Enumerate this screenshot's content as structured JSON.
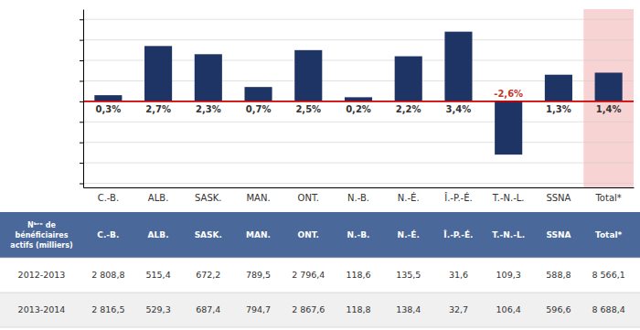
{
  "chart_data": {
    "type": "bar",
    "categories": [
      "C.-B.",
      "ALB.",
      "SASK.",
      "MAN.",
      "ONT.",
      "N.-B.",
      "N.-É.",
      "Î.-P.-É.",
      "T.-N.-L.",
      "SSNA",
      "Total*"
    ],
    "values": [
      0.3,
      2.7,
      2.3,
      0.7,
      2.5,
      0.2,
      2.2,
      3.4,
      -2.6,
      1.3,
      1.4
    ],
    "value_labels": [
      "0,3%",
      "2,7%",
      "2,3%",
      "0,7%",
      "2,5%",
      "0,2%",
      "2,2%",
      "3,4%",
      "-2,6%",
      "1,3%",
      "1,4%"
    ],
    "data_labels": true,
    "color": "#1e3464",
    "ylim": [
      -4.2,
      4.5
    ],
    "yticks": [
      -4,
      -3,
      -2,
      -1,
      0,
      1,
      2,
      3,
      4
    ],
    "grid": true,
    "tick_labels": "x",
    "table": {
      "row_header": [
        "Nᵇʳᵉ de",
        "bénéficiaires",
        "actifs (milliers)"
      ],
      "rows": [
        {
          "name": "2012-2013",
          "values": [
            2808.8,
            515.4,
            672.2,
            789.5,
            2796.4,
            118.6,
            135.5,
            31.6,
            109.3,
            588.8,
            8566.1
          ],
          "value_labels": [
            "2 808,8",
            "515,4",
            "672,2",
            "789,5",
            "2 796,4",
            "118,6",
            "135,5",
            "31,6",
            "109,3",
            "588,8",
            "8 566,1"
          ]
        },
        {
          "name": "2013-2014",
          "values": [
            2816.5,
            529.3,
            687.4,
            794.7,
            2867.6,
            118.8,
            138.4,
            32.7,
            106.4,
            596.6,
            8688.4
          ],
          "value_labels": [
            "2 816,5",
            "529,3",
            "687,4",
            "794,7",
            "2 867,6",
            "118,8",
            "138,4",
            "32,7",
            "106,4",
            "596,6",
            "8 688,4"
          ]
        }
      ]
    }
  }
}
